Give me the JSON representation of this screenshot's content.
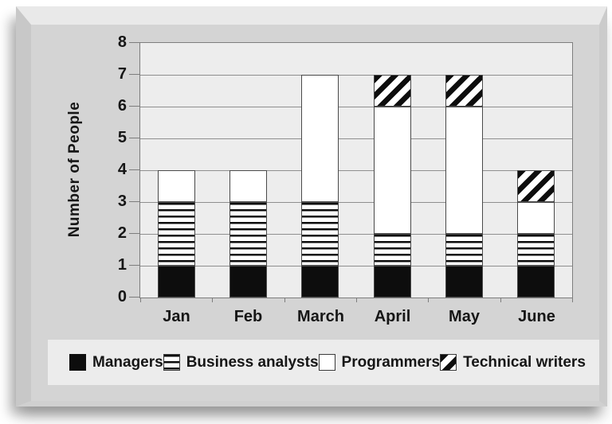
{
  "panel": {
    "description": "stacked-bar-chart-plaque"
  },
  "colors": {
    "page_bg": "#ffffff",
    "slab_face": "#d4d4d4",
    "slab_top_bevel": "#e9e9e9",
    "slab_left_bevel": "#c8c8c8",
    "plot_bg": "#ededed",
    "grid_line": "#8f8f8f",
    "frame_line": "#7d7d7d",
    "legend_bg": "#ececec",
    "bar_outline": "#4a4a4a",
    "pattern_black": "#0d0d0d",
    "pattern_white": "#ffffff",
    "text_ink": "#161616"
  },
  "chart_data": {
    "type": "bar",
    "stacked": true,
    "title": "",
    "categories": [
      "Jan",
      "Feb",
      "March",
      "April",
      "May",
      "June"
    ],
    "series": [
      {
        "name": "Managers",
        "pattern": "solid-black",
        "values": [
          1,
          1,
          1,
          1,
          1,
          1
        ]
      },
      {
        "name": "Business analysts",
        "pattern": "horizontal-stripes",
        "values": [
          2,
          2,
          2,
          1,
          1,
          1
        ]
      },
      {
        "name": "Programmers",
        "pattern": "solid-white",
        "values": [
          1,
          1,
          4,
          4,
          4,
          1
        ]
      },
      {
        "name": "Technical writers",
        "pattern": "diagonal-stripes",
        "values": [
          0,
          0,
          0,
          1,
          1,
          1
        ]
      }
    ],
    "totals": [
      4,
      4,
      7,
      7,
      7,
      4
    ],
    "xlabel": "",
    "ylabel": "Number of People",
    "ylim": [
      0,
      8
    ],
    "yticks": [
      0,
      1,
      2,
      3,
      4,
      5,
      6,
      7,
      8
    ],
    "grid": true,
    "grid_orientation": "horizontal",
    "legend_position": "bottom",
    "legend": [
      "Managers",
      "Business analysts",
      "Programmers",
      "Technical writers"
    ]
  }
}
